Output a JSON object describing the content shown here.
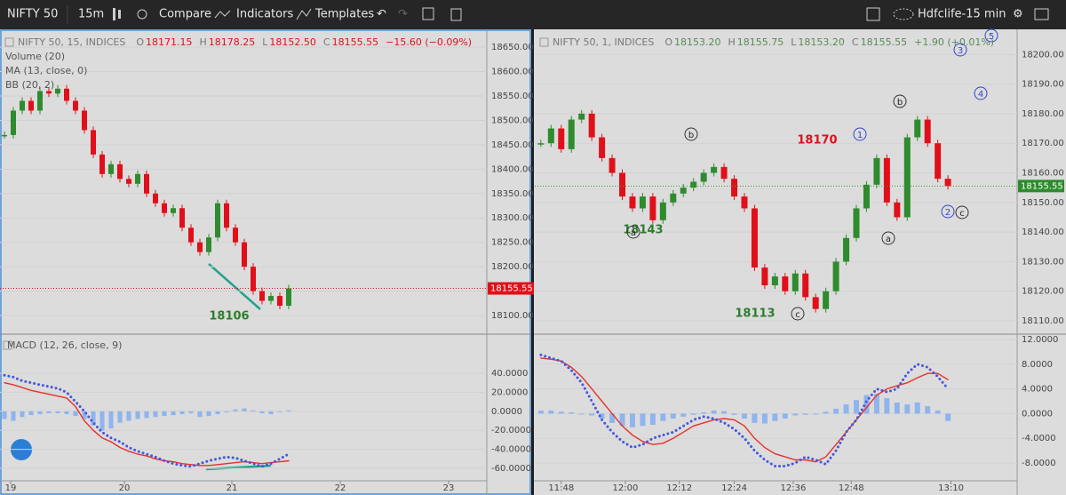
{
  "toolbar": {
    "symbol": "NIFTY 50",
    "interval": "15m",
    "compare": "Compare",
    "indicators": "Indicators",
    "templates": "Templates",
    "layout": "Hdfclife-15 min"
  },
  "chart_data": [
    {
      "type": "candlestick",
      "title": "NIFTY 50, 15, INDICES",
      "ohlc_labels": [
        "O",
        "H",
        "L",
        "C"
      ],
      "ohlc_values": [
        "18171.15",
        "18178.25",
        "18152.50",
        "18155.55"
      ],
      "change": "−15.60 (−0.09%)",
      "studies": [
        "Volume (20)",
        "MA (13, close, 0)",
        "BB (20, 2)"
      ],
      "values": [
        18470,
        18520,
        18540,
        18520,
        18560,
        18555,
        18565,
        18540,
        18520,
        18480,
        18430,
        18390,
        18410,
        18380,
        18370,
        18390,
        18350,
        18330,
        18310,
        18320,
        18280,
        18250,
        18230,
        18260,
        18330,
        18280,
        18250,
        18200,
        18150,
        18130,
        18140,
        18120,
        18155.55
      ],
      "last_price_label": "18155.55",
      "annotations": [
        "18106"
      ],
      "xlim": [
        -0.5,
        54.3
      ],
      "xticks": [
        {
          "value": 0.7,
          "label": "19"
        },
        {
          "value": 13.5,
          "label": "20"
        },
        {
          "value": 25.6,
          "label": "21"
        },
        {
          "value": 37.8,
          "label": "22"
        },
        {
          "value": 50,
          "label": "23"
        }
      ],
      "ylim": [
        18063.6,
        18683
      ],
      "yticks": [
        {
          "value": 18100,
          "label": "18100.00"
        },
        {
          "value": 18150,
          "label": "18150.00"
        },
        {
          "value": 18200,
          "label": "18200.00"
        },
        {
          "value": 18250,
          "label": "18250.00"
        },
        {
          "value": 18300,
          "label": "18300.00"
        },
        {
          "value": 18350,
          "label": "18350.00"
        },
        {
          "value": 18400,
          "label": "18400.00"
        },
        {
          "value": 18450,
          "label": "18450.00"
        },
        {
          "value": 18500,
          "label": "18500.00"
        },
        {
          "value": 18550,
          "label": "18550.00"
        },
        {
          "value": 18600,
          "label": "18600.00"
        },
        {
          "value": 18650,
          "label": "18650.00"
        }
      ],
      "waves": [],
      "macd": {
        "title": "MACD (12, 26, close, 9)",
        "ylim": [
          -72.1,
          80.2
        ],
        "yticks": [
          {
            "value": 40,
            "label": "40.0000"
          },
          {
            "value": 20,
            "label": "20.0000"
          },
          {
            "value": 0,
            "label": "0.0000"
          },
          {
            "value": -20,
            "label": "-20.0000"
          },
          {
            "value": -40,
            "label": "-40.0000"
          },
          {
            "value": -60,
            "label": "-60.0000"
          }
        ],
        "histogram": [
          -8,
          -10,
          -6,
          -4,
          -3,
          -2,
          -2,
          -3,
          -5,
          -8,
          -15,
          -20,
          -18,
          -12,
          -10,
          -8,
          -7,
          -6,
          -5,
          -4,
          -3,
          -2,
          -6,
          -5,
          -3,
          -1,
          2,
          3,
          1,
          -2,
          -3,
          0,
          1
        ],
        "series": [
          {
            "color": "#e8302a",
            "values": [
              30,
              28,
              25,
              22,
              20,
              18,
              16,
              14,
              5,
              -10,
              -20,
              -28,
              -32,
              -38,
              -42,
              -45,
              -47,
              -50,
              -52,
              -53,
              -55,
              -56,
              -57,
              -57,
              -56,
              -55,
              -54,
              -53,
              -54,
              -55,
              -54,
              -53,
              -52
            ]
          },
          {
            "color": "#4455e0",
            "values": [
              38,
              36,
              32,
              30,
              28,
              26,
              24,
              20,
              10,
              0,
              -12,
              -22,
              -28,
              -32,
              -38,
              -42,
              -45,
              -48,
              -52,
              -55,
              -57,
              -58,
              -55,
              -52,
              -50,
              -48,
              -49,
              -52,
              -55,
              -58,
              -55,
              -50,
              -45
            ]
          }
        ]
      }
    },
    {
      "type": "candlestick",
      "title": "NIFTY 50, 1, INDICES",
      "ohlc_labels": [
        "O",
        "H",
        "L",
        "C"
      ],
      "ohlc_values": [
        "18153.20",
        "18155.75",
        "18153.20",
        "18155.55"
      ],
      "change": "+1.90 (+0.01%)",
      "studies": [],
      "values": [
        18170,
        18175,
        18168,
        18178,
        18180,
        18172,
        18165,
        18160,
        18152,
        18148,
        18152,
        18144,
        18150,
        18153,
        18155,
        18157,
        18160,
        18162,
        18158,
        18152,
        18148,
        18128,
        18122,
        18125,
        18120,
        18126,
        18118,
        18114,
        18120,
        18130,
        18138,
        18148,
        18156,
        18165,
        18150,
        18145,
        18172,
        18178,
        18170,
        18158,
        18155.55
      ],
      "last_price_label": "18155.55",
      "annotations": [
        "18143",
        "18113",
        "18170"
      ],
      "xlim": [
        -0.6,
        46.8
      ],
      "xticks": [
        {
          "value": 2.0,
          "label": "11:48"
        },
        {
          "value": 8.3,
          "label": "12:00"
        },
        {
          "value": 13.6,
          "label": "12:12"
        },
        {
          "value": 19.0,
          "label": "12:24"
        },
        {
          "value": 24.8,
          "label": "12:36"
        },
        {
          "value": 30.5,
          "label": "12:48"
        },
        {
          "value": 40.3,
          "label": "13:10"
        }
      ],
      "ylim": [
        18105.8,
        18207.9
      ],
      "yticks": [
        {
          "value": 18110,
          "label": "18110.00"
        },
        {
          "value": 18120,
          "label": "18120.00"
        },
        {
          "value": 18130,
          "label": "18130.00"
        },
        {
          "value": 18140,
          "label": "18140.00"
        },
        {
          "value": 18150,
          "label": "18150.00"
        },
        {
          "value": 18160,
          "label": "18160.00"
        },
        {
          "value": 18170,
          "label": "18170.00"
        },
        {
          "value": 18180,
          "label": "18180.00"
        },
        {
          "value": 18190,
          "label": "18190.00"
        },
        {
          "value": 18200,
          "label": "18200.00"
        }
      ],
      "waves": [
        "a",
        "b",
        "c",
        "b",
        "a",
        "c",
        "2",
        "1",
        "3",
        "4",
        "5"
      ],
      "macd": {
        "title": "",
        "ylim": [
          -10.73,
          12.72
        ],
        "yticks": [
          {
            "value": 12,
            "label": "12.0000"
          },
          {
            "value": 8,
            "label": "8.0000"
          },
          {
            "value": 4,
            "label": "4.0000"
          },
          {
            "value": 0,
            "label": "0.0000"
          },
          {
            "value": -4,
            "label": "-4.0000"
          },
          {
            "value": -8,
            "label": "-8.0000"
          }
        ],
        "histogram": [
          0.5,
          0.5,
          0.3,
          0.2,
          0,
          -0.3,
          -0.8,
          -1.5,
          -2,
          -2.2,
          -2,
          -1.8,
          -1.2,
          -0.8,
          -0.5,
          -0.2,
          0.2,
          0.5,
          0.4,
          -0.2,
          -0.8,
          -1.5,
          -1.6,
          -1.2,
          -0.8,
          -0.3,
          -0.2,
          -0.1,
          0.3,
          0.8,
          1.5,
          2.2,
          3.0,
          3.2,
          2.5,
          1.8,
          1.5,
          1.8,
          1.2,
          0.5,
          -1.2
        ],
        "series": [
          {
            "color": "#e8302a",
            "values": [
              9,
              8.8,
              8.5,
              7.5,
              6,
              4,
              2,
              0,
              -2,
              -3.5,
              -4.5,
              -5,
              -4.8,
              -4,
              -3,
              -2,
              -1.5,
              -1,
              -0.8,
              -1,
              -2,
              -4,
              -5.5,
              -6.5,
              -7,
              -7.5,
              -7.5,
              -7.8,
              -7,
              -5,
              -3,
              -1,
              1,
              3,
              4,
              4.5,
              5,
              5.8,
              6.5,
              6.5,
              5.5
            ]
          },
          {
            "color": "#4455e0",
            "values": [
              9.5,
              9,
              8.5,
              7,
              5,
              2,
              -1,
              -3,
              -4.5,
              -5.5,
              -5,
              -4,
              -3.5,
              -3,
              -2,
              -1,
              -0.5,
              -0.8,
              -1.5,
              -2.5,
              -4,
              -6,
              -7.5,
              -8.5,
              -8.5,
              -8,
              -7,
              -7.5,
              -8.2,
              -6,
              -3,
              -1,
              2,
              4,
              3.5,
              4,
              6.5,
              8,
              7.5,
              6,
              4
            ]
          }
        ]
      }
    }
  ]
}
